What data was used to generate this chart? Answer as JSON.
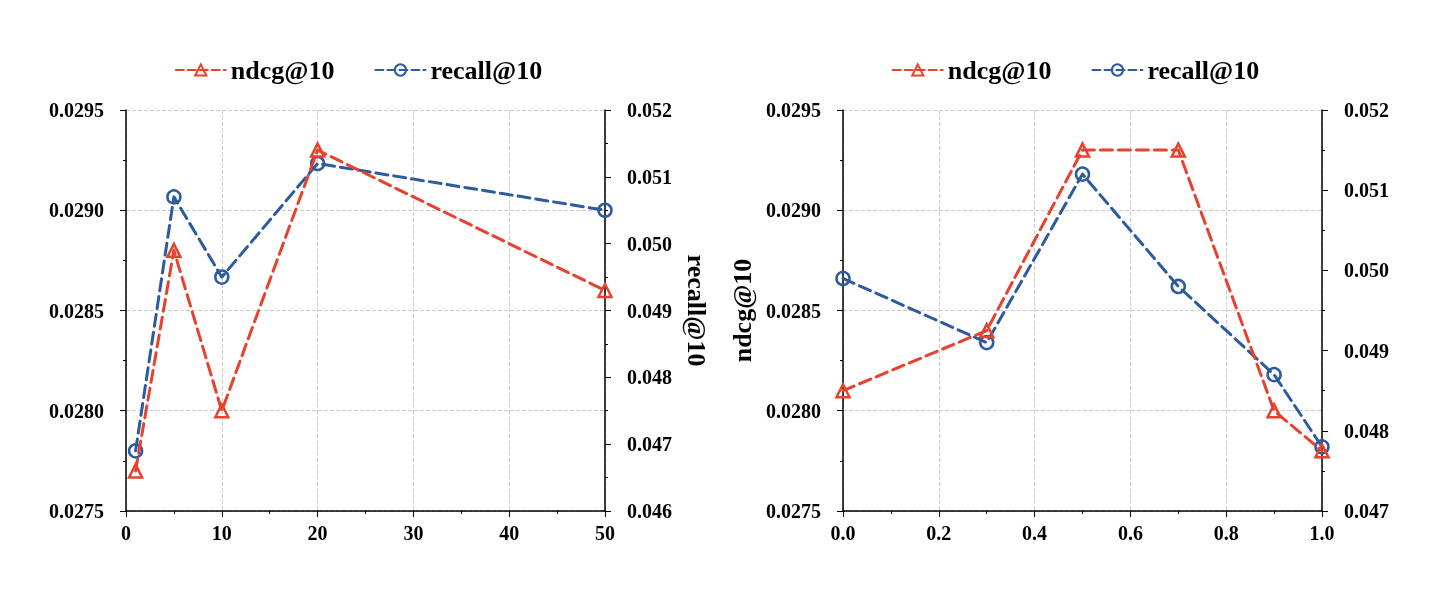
{
  "chart_data": [
    {
      "type": "line",
      "y2label": "recall@10",
      "legend": "top",
      "grid": true,
      "line_style": "dashed",
      "xlim": [
        0,
        50
      ],
      "xticks": [
        0,
        10,
        20,
        30,
        40,
        50
      ],
      "ylim": [
        0.0275,
        0.0295
      ],
      "yticks": [
        {
          "value": 0.0275,
          "label": "0.0275"
        },
        {
          "value": 0.028,
          "label": "0.0280"
        },
        {
          "value": 0.0285,
          "label": "0.0285"
        },
        {
          "value": 0.029,
          "label": "0.0290"
        },
        {
          "value": 0.0295,
          "label": "0.0295"
        }
      ],
      "y2lim": [
        0.046,
        0.052
      ],
      "y2ticks": [
        {
          "value": 0.046,
          "label": "0.046"
        },
        {
          "value": 0.047,
          "label": "0.047"
        },
        {
          "value": 0.048,
          "label": "0.048"
        },
        {
          "value": 0.049,
          "label": "0.049"
        },
        {
          "value": 0.05,
          "label": "0.050"
        },
        {
          "value": 0.051,
          "label": "0.051"
        },
        {
          "value": 0.052,
          "label": "0.052"
        }
      ],
      "x": [
        1,
        5,
        10,
        20,
        50
      ],
      "series": [
        {
          "name": "ndcg@10",
          "color": "#e8412e",
          "marker": "triangle",
          "values": [
            0.0277,
            0.0288,
            0.028,
            0.0293,
            0.0286
          ]
        },
        {
          "name": "recall@10",
          "color": "#2e5a9e",
          "marker": "circle",
          "axis": "y2",
          "values": [
            0.0469,
            0.0507,
            0.0495,
            0.0512,
            0.0505
          ]
        }
      ]
    },
    {
      "type": "line",
      "ylabel": "ndcg@10",
      "legend": "top",
      "grid": true,
      "line_style": "dashed",
      "xlim": [
        0,
        1
      ],
      "xticks": [
        {
          "value": 0,
          "label": "0.0"
        },
        {
          "value": 0.2,
          "label": "0.2"
        },
        {
          "value": 0.4,
          "label": "0.4"
        },
        {
          "value": 0.6,
          "label": "0.6"
        },
        {
          "value": 0.8,
          "label": "0.8"
        },
        {
          "value": 1,
          "label": "1.0"
        }
      ],
      "ylim": [
        0.0275,
        0.0295
      ],
      "yticks": [
        {
          "value": 0.0275,
          "label": "0.0275"
        },
        {
          "value": 0.028,
          "label": "0.0280"
        },
        {
          "value": 0.0285,
          "label": "0.0285"
        },
        {
          "value": 0.029,
          "label": "0.0290"
        },
        {
          "value": 0.0295,
          "label": "0.0295"
        }
      ],
      "y2lim": [
        0.047,
        0.052
      ],
      "y2ticks": [
        {
          "value": 0.047,
          "label": "0.047"
        },
        {
          "value": 0.048,
          "label": "0.048"
        },
        {
          "value": 0.049,
          "label": "0.049"
        },
        {
          "value": 0.05,
          "label": "0.050"
        },
        {
          "value": 0.051,
          "label": "0.051"
        },
        {
          "value": 0.052,
          "label": "0.052"
        }
      ],
      "x": [
        0,
        0.3,
        0.5,
        0.7,
        0.9,
        1
      ],
      "series": [
        {
          "name": "ndcg@10",
          "color": "#e8412e",
          "marker": "triangle",
          "values": [
            0.0281,
            0.0284,
            0.0293,
            0.0293,
            0.028,
            0.0278
          ]
        },
        {
          "name": "recall@10",
          "color": "#2e5a9e",
          "marker": "circle",
          "axis": "y2",
          "values": [
            0.0499,
            0.0491,
            0.0512,
            0.0498,
            0.0487,
            0.0478
          ]
        }
      ]
    }
  ]
}
